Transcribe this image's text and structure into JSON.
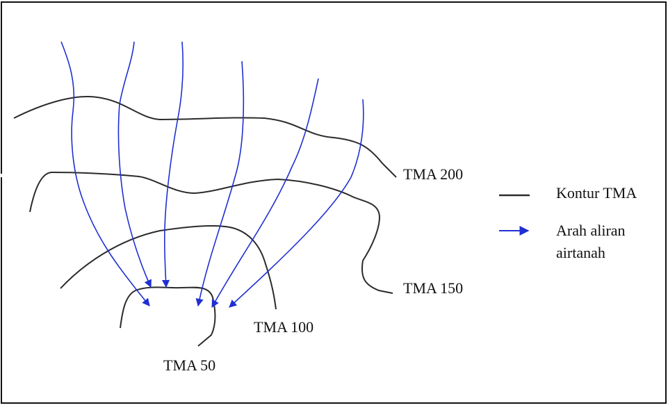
{
  "diagram": {
    "contour_labels": {
      "tma200": "TMA 200",
      "tma150": "TMA 150",
      "tma100": "TMA 100",
      "tma50": "TMA 50"
    },
    "legend": {
      "contour_label": "Kontur TMA",
      "flow_label_line1": "Arah aliran",
      "flow_label_line2": "airtanah"
    },
    "colors": {
      "contour": "#2b2b2b",
      "flow_arrow": "#1f2fd1",
      "frame": "#111111",
      "background": "#ffffff"
    }
  }
}
